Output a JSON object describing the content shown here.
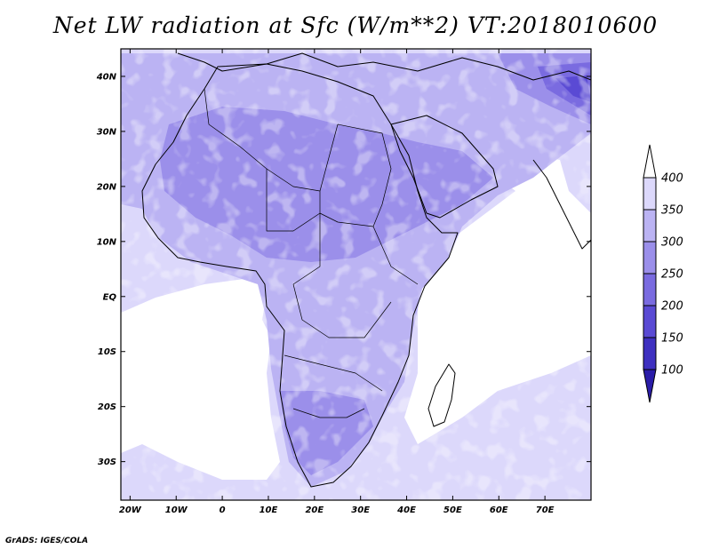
{
  "title": "Net LW radiation at Sfc (W/m**2) VT:2018010600",
  "credit": "GrADS: IGES/COLA",
  "map": {
    "lon_range": [
      -22,
      80
    ],
    "lat_range": [
      -37,
      45
    ],
    "x_ticks": [
      {
        "value": -20,
        "label": "20W"
      },
      {
        "value": -10,
        "label": "10W"
      },
      {
        "value": 0,
        "label": "0"
      },
      {
        "value": 10,
        "label": "10E"
      },
      {
        "value": 20,
        "label": "20E"
      },
      {
        "value": 30,
        "label": "30E"
      },
      {
        "value": 40,
        "label": "40E"
      },
      {
        "value": 50,
        "label": "50E"
      },
      {
        "value": 60,
        "label": "60E"
      },
      {
        "value": 70,
        "label": "70E"
      }
    ],
    "y_ticks": [
      {
        "value": 40,
        "label": "40N"
      },
      {
        "value": 30,
        "label": "30N"
      },
      {
        "value": 20,
        "label": "20N"
      },
      {
        "value": 10,
        "label": "10N"
      },
      {
        "value": 0,
        "label": "EQ"
      },
      {
        "value": -10,
        "label": "10S"
      },
      {
        "value": -20,
        "label": "20S"
      },
      {
        "value": -30,
        "label": "30S"
      }
    ]
  },
  "colorbar": {
    "levels": [
      "100",
      "150",
      "200",
      "250",
      "300",
      "350",
      "400"
    ],
    "colors": [
      "#2a1ca8",
      "#3e30c0",
      "#5a4ad4",
      "#7a6be0",
      "#9b8fea",
      "#bbb3f3",
      "#dcd8fb",
      "#ffffff"
    ]
  }
}
